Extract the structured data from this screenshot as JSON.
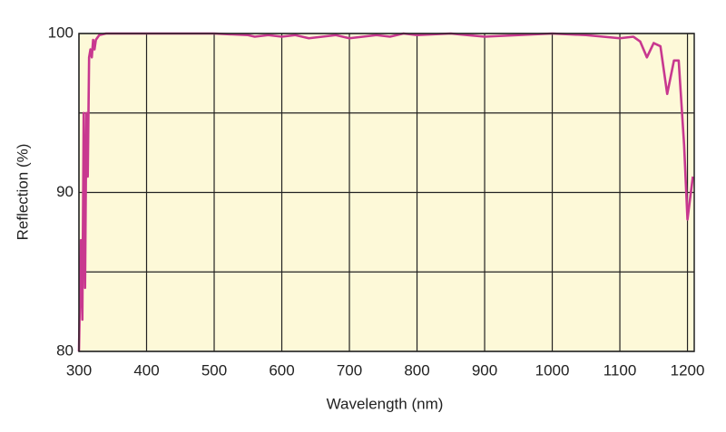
{
  "chart_data": {
    "type": "line",
    "x_label": "Wavelength (nm)",
    "y_label": "Reflection (%)",
    "x": [
      300,
      303,
      305,
      307,
      309,
      311,
      313,
      315,
      317,
      319,
      321,
      323,
      325,
      330,
      340,
      400,
      500,
      550,
      560,
      580,
      600,
      620,
      640,
      660,
      680,
      700,
      720,
      740,
      760,
      780,
      800,
      850,
      900,
      950,
      1000,
      1050,
      1100,
      1120,
      1130,
      1140,
      1150,
      1160,
      1170,
      1180,
      1187,
      1195,
      1200,
      1205,
      1208
    ],
    "values": [
      80,
      87,
      82,
      95,
      84,
      95,
      91,
      98.5,
      99,
      98.5,
      99.6,
      99,
      99.6,
      99.9,
      100,
      100,
      100,
      99.9,
      99.8,
      99.9,
      99.8,
      99.9,
      99.7,
      99.8,
      99.9,
      99.7,
      99.8,
      99.9,
      99.8,
      100,
      99.9,
      100,
      99.8,
      99.9,
      100,
      99.9,
      99.7,
      99.8,
      99.5,
      98.5,
      99.4,
      99.2,
      96.2,
      98.3,
      98.3,
      93,
      88.3,
      90,
      91
    ],
    "color": "#c8388f",
    "xlim": [
      300,
      1210
    ],
    "ylim": [
      80,
      100
    ],
    "xticks": [
      300,
      400,
      500,
      600,
      700,
      800,
      900,
      1000,
      1100,
      1200
    ],
    "yticks": [
      80,
      90,
      100
    ],
    "minor_yticks": [
      85,
      95
    ],
    "grid": true,
    "background": "#fdf9d8"
  }
}
